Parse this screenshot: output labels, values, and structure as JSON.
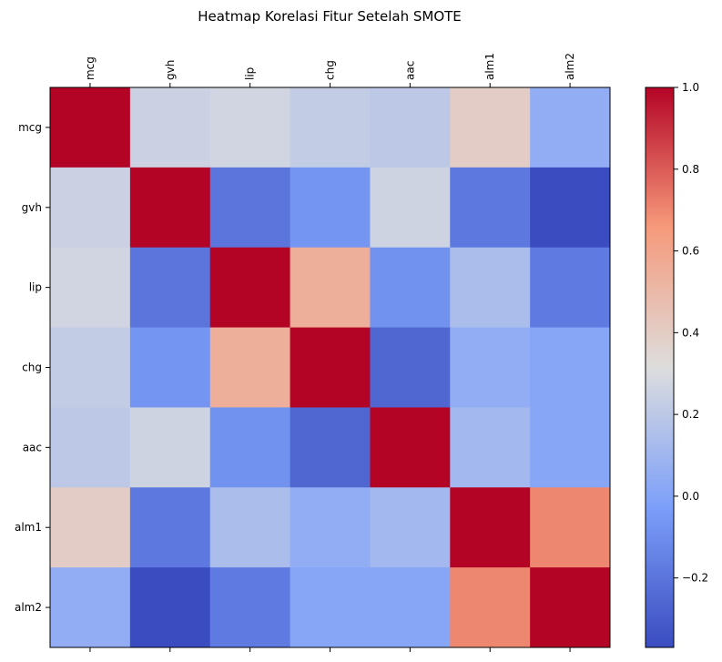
{
  "chart_data": {
    "type": "heatmap",
    "title": "Heatmap Korelasi Fitur Setelah SMOTE",
    "xlabel": "",
    "ylabel": "",
    "labels": [
      "mcg",
      "gvh",
      "lip",
      "chg",
      "aac",
      "alm1",
      "alm2"
    ],
    "matrix": [
      [
        1.0,
        0.25,
        0.27,
        0.22,
        0.2,
        0.4,
        0.05
      ],
      [
        0.25,
        1.0,
        -0.2,
        -0.07,
        0.26,
        -0.19,
        -0.37
      ],
      [
        0.27,
        -0.2,
        1.0,
        0.55,
        -0.08,
        0.14,
        -0.18
      ],
      [
        0.22,
        -0.07,
        0.55,
        1.0,
        -0.26,
        0.05,
        0.01
      ],
      [
        0.2,
        0.26,
        -0.08,
        -0.26,
        1.0,
        0.11,
        0.01
      ],
      [
        0.4,
        -0.19,
        0.14,
        0.05,
        0.11,
        1.0,
        0.7
      ],
      [
        0.05,
        -0.37,
        -0.18,
        0.01,
        0.01,
        0.7,
        1.0
      ]
    ],
    "colormap": "coolwarm",
    "vmin": -0.37,
    "vmax": 1.0,
    "colorbar_ticks": [
      "1.0",
      "0.8",
      "0.6",
      "0.4",
      "0.2",
      "0.0",
      "−0.2"
    ],
    "x_tick_position": "top",
    "grid": false
  }
}
